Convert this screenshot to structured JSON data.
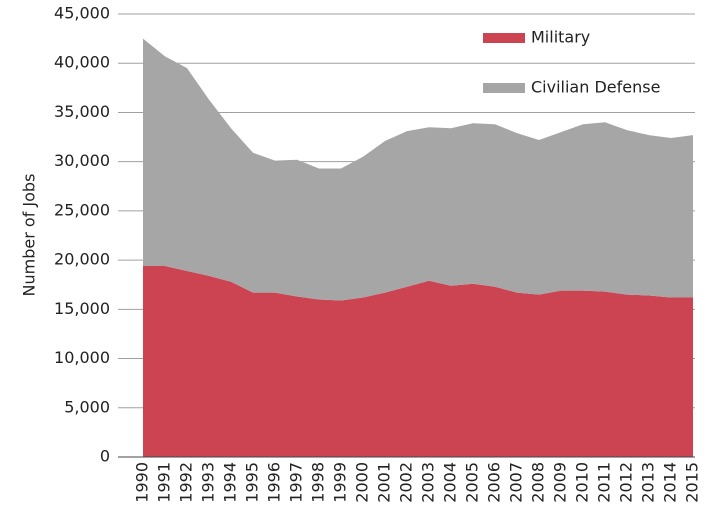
{
  "chart_data": {
    "type": "stacked_area",
    "y_label": "Number of Jobs",
    "categories": [
      "1990",
      "1991",
      "1992",
      "1993",
      "1994",
      "1995",
      "1996",
      "1997",
      "1998",
      "1999",
      "2000",
      "2001",
      "2002",
      "2003",
      "2004",
      "2005",
      "2006",
      "2007",
      "2008",
      "2009",
      "2010",
      "2011",
      "2012",
      "2013",
      "2014",
      "2015"
    ],
    "series": [
      {
        "name": "Military",
        "color": "#cc4352",
        "values": [
          19400,
          19400,
          18900,
          18400,
          17800,
          16700,
          16700,
          16300,
          16000,
          15900,
          16200,
          16700,
          17300,
          17900,
          17400,
          17600,
          17300,
          16700,
          16500,
          16900,
          16900,
          16800,
          16500,
          16400,
          16200,
          16200
        ]
      },
      {
        "name": "Civilian Defense",
        "color": "#a6a6a6",
        "values": [
          23100,
          21300,
          20600,
          17900,
          15600,
          14200,
          13400,
          13900,
          13300,
          13400,
          14300,
          15400,
          15800,
          15600,
          16000,
          16300,
          16500,
          16200,
          15700,
          16100,
          16900,
          17200,
          16700,
          16300,
          16200,
          16500
        ]
      }
    ],
    "ylim": [
      0,
      45000
    ],
    "yticks": [
      0,
      {
        "value": 5000,
        "label": "5,000"
      },
      {
        "value": 10000,
        "label": "10,000"
      },
      {
        "value": 15000,
        "label": "15,000"
      },
      {
        "value": 20000,
        "label": "20,000"
      },
      {
        "value": 25000,
        "label": "25,000"
      },
      {
        "value": 30000,
        "label": "30,000"
      },
      {
        "value": 35000,
        "label": "35,000"
      },
      {
        "value": 40000,
        "label": "40,000"
      },
      {
        "value": 45000,
        "label": "45,000"
      }
    ],
    "grid": true,
    "legend": "upper right"
  }
}
